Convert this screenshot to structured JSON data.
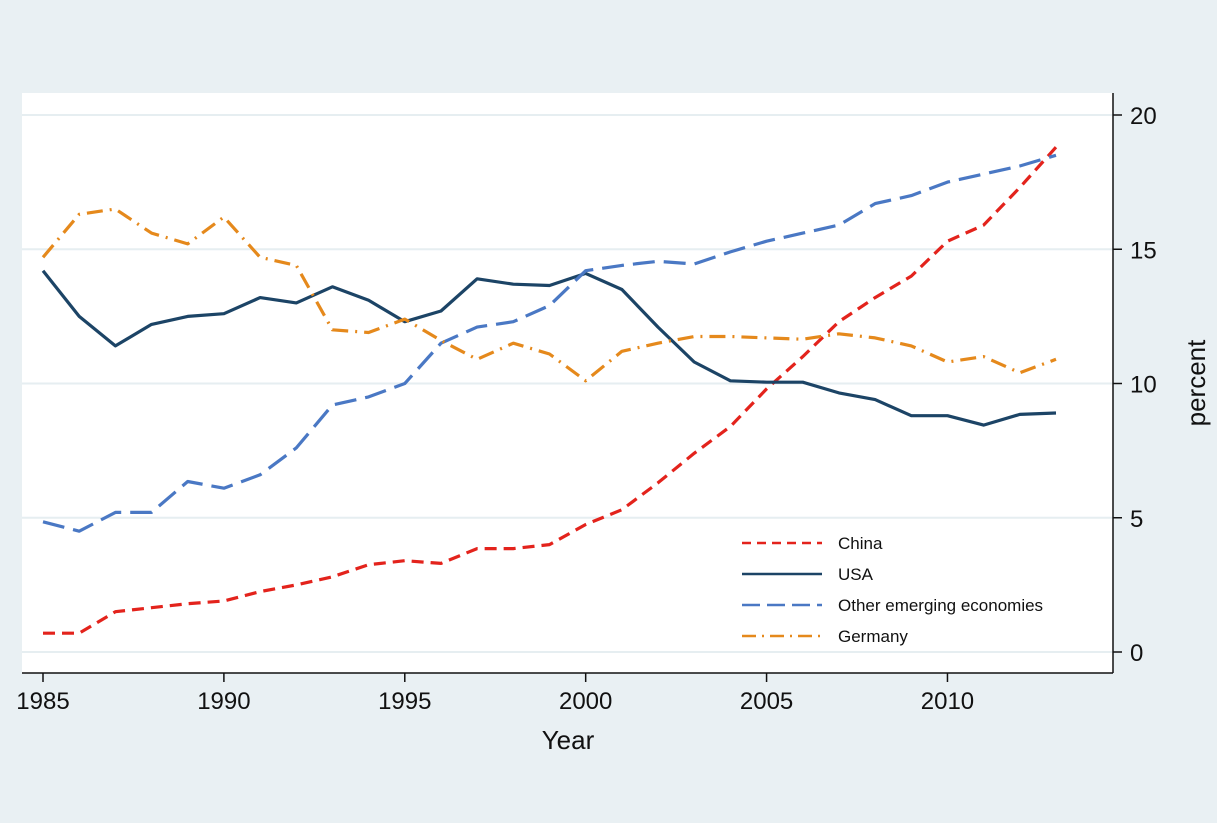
{
  "chart_data": {
    "type": "line",
    "title": "",
    "xlabel": "Year",
    "ylabel": "percent",
    "xlim": [
      1985,
      2013
    ],
    "ylim": [
      0,
      20
    ],
    "y_axis_side": "right",
    "grid": true,
    "legend_placement": "bottom-right",
    "x_ticks": [
      "1985",
      "1990",
      "1995",
      "2000",
      "2005",
      "2010"
    ],
    "y_ticks": [
      "0",
      "5",
      "10",
      "15",
      "20"
    ],
    "x": [
      1985,
      1986,
      1987,
      1988,
      1989,
      1990,
      1991,
      1992,
      1993,
      1994,
      1995,
      1996,
      1997,
      1998,
      1999,
      2000,
      2001,
      2002,
      2003,
      2004,
      2005,
      2006,
      2007,
      2008,
      2009,
      2010,
      2011,
      2012,
      2013
    ],
    "series": [
      {
        "name": "China",
        "color": "#e3231c",
        "style": "dashed",
        "values": [
          0.7,
          0.7,
          1.5,
          1.65,
          1.8,
          1.9,
          2.25,
          2.5,
          2.8,
          3.25,
          3.4,
          3.3,
          3.85,
          3.85,
          4.0,
          4.75,
          5.3,
          6.3,
          7.4,
          8.4,
          9.8,
          11.0,
          12.3,
          13.2,
          14.0,
          15.3,
          15.9,
          17.3,
          18.8
        ]
      },
      {
        "name": "USA",
        "color": "#1c4466",
        "style": "solid",
        "values": [
          14.2,
          12.5,
          11.4,
          12.2,
          12.5,
          12.6,
          13.2,
          13.0,
          13.6,
          13.1,
          12.3,
          12.7,
          13.9,
          13.7,
          13.65,
          14.1,
          13.5,
          12.1,
          10.8,
          10.1,
          10.05,
          10.05,
          9.65,
          9.4,
          8.8,
          8.8,
          8.45,
          8.85,
          8.9
        ]
      },
      {
        "name": "Other emerging economies",
        "color": "#4a78c4",
        "style": "longdash",
        "values": [
          4.85,
          4.5,
          5.2,
          5.2,
          6.35,
          6.1,
          6.6,
          7.6,
          9.2,
          9.5,
          10.0,
          11.5,
          12.1,
          12.3,
          12.9,
          14.2,
          14.4,
          14.55,
          14.45,
          14.9,
          15.3,
          15.6,
          15.9,
          16.7,
          17.0,
          17.5,
          17.8,
          18.1,
          18.5
        ]
      },
      {
        "name": "Germany",
        "color": "#e5891c",
        "style": "dashdot",
        "values": [
          14.7,
          16.3,
          16.5,
          15.6,
          15.2,
          16.2,
          14.7,
          14.4,
          12.0,
          11.9,
          12.4,
          11.6,
          10.9,
          11.5,
          11.1,
          10.1,
          11.2,
          11.5,
          11.75,
          11.75,
          11.7,
          11.65,
          11.85,
          11.7,
          11.4,
          10.8,
          11.0,
          10.4,
          10.9
        ]
      }
    ]
  }
}
